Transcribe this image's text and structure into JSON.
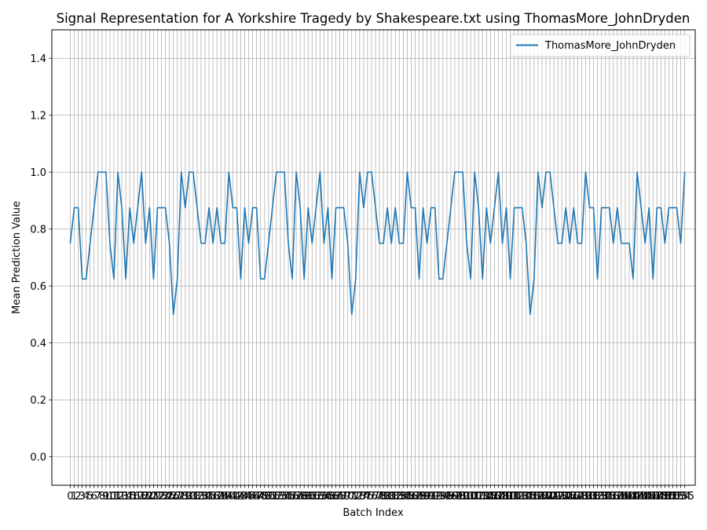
{
  "chart_data": {
    "type": "line",
    "title": "Signal Representation for A Yorkshire Tragedy by Shakespeare.txt using ThomasMore_JohnDryden",
    "xlabel": "Batch Index",
    "ylabel": "Mean Prediction Value",
    "xlim": [
      -4.65,
      157.65
    ],
    "ylim": [
      -0.1,
      1.5
    ],
    "yticks": [
      0.0,
      0.2,
      0.4,
      0.6,
      0.8,
      1.0,
      1.2,
      1.4
    ],
    "ytick_labels": [
      "0.0",
      "0.2",
      "0.4",
      "0.6",
      "0.8",
      "1.0",
      "1.2",
      "1.4"
    ],
    "grid": true,
    "legend_position": "upper right",
    "series": [
      {
        "name": "ThomasMore_JohnDryden",
        "color": "#1f77b4",
        "values": [
          0.75,
          0.875,
          0.875,
          0.625,
          0.625,
          0.75,
          0.875,
          1.0,
          1.0,
          1.0,
          0.75,
          0.625,
          1.0,
          0.875,
          0.625,
          0.875,
          0.75,
          0.875,
          1.0,
          0.75,
          0.875,
          0.625,
          0.875,
          0.875,
          0.875,
          0.75,
          0.5,
          0.625,
          1.0,
          0.875,
          1.0,
          1.0,
          0.875,
          0.75,
          0.75,
          0.875,
          0.75,
          0.875,
          0.75,
          0.75,
          1.0,
          0.875,
          0.875,
          0.625,
          0.875,
          0.75,
          0.875,
          0.875,
          0.625,
          0.625,
          0.75,
          0.875,
          1.0,
          1.0,
          1.0,
          0.75,
          0.625,
          1.0,
          0.875,
          0.625,
          0.875,
          0.75,
          0.875,
          1.0,
          0.75,
          0.875,
          0.625,
          0.875,
          0.875,
          0.875,
          0.75,
          0.5,
          0.625,
          1.0,
          0.875,
          1.0,
          1.0,
          0.875,
          0.75,
          0.75,
          0.875,
          0.75,
          0.875,
          0.75,
          0.75,
          1.0,
          0.875,
          0.875,
          0.625,
          0.875,
          0.75,
          0.875,
          0.875,
          0.625,
          0.625,
          0.75,
          0.875,
          1.0,
          1.0,
          1.0,
          0.75,
          0.625,
          1.0,
          0.875,
          0.625,
          0.875,
          0.75,
          0.875,
          1.0,
          0.75,
          0.875,
          0.625,
          0.875,
          0.875,
          0.875,
          0.75,
          0.5,
          0.625,
          1.0,
          0.875,
          1.0,
          1.0,
          0.875,
          0.75,
          0.75,
          0.875,
          0.75,
          0.875,
          0.75,
          0.75,
          1.0,
          0.875,
          0.875,
          0.625,
          0.875,
          0.875,
          0.875,
          0.75,
          0.875,
          0.75,
          0.75,
          0.75,
          0.625,
          1.0,
          0.875,
          0.75,
          0.875,
          0.625,
          0.875,
          0.875,
          0.75,
          0.875,
          0.875,
          0.875,
          0.75,
          1.0
        ]
      }
    ]
  }
}
